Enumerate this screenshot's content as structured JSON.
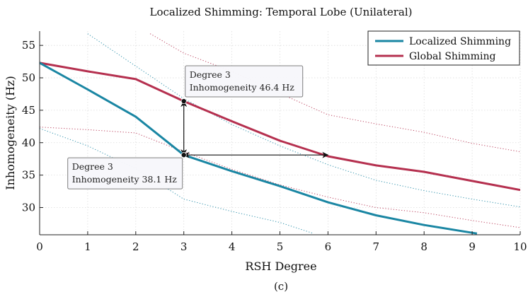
{
  "chart_data": {
    "type": "line",
    "title": "Localized Shimming: Temporal Lobe (Unilateral)",
    "xlabel": "RSH Degree",
    "ylabel": "Inhomogeneity (Hz)",
    "caption": "(c)",
    "xlim": [
      0,
      10
    ],
    "ylim": [
      25.8,
      57.2
    ],
    "xticks": [
      0,
      1,
      2,
      3,
      4,
      5,
      6,
      7,
      8,
      9,
      10
    ],
    "yticks": [
      30,
      35,
      40,
      45,
      50,
      55
    ],
    "grid": true,
    "legend_position": "top-right",
    "series": [
      {
        "name": "Localized Shimming",
        "color": "#1a86a3",
        "x": [
          0,
          1,
          2,
          3,
          4,
          5,
          6,
          7,
          8,
          9,
          9.1
        ],
        "y": [
          52.3,
          48.2,
          44.0,
          38.1,
          35.6,
          33.3,
          30.8,
          28.8,
          27.3,
          26.1,
          26.0
        ],
        "band_upper": {
          "x": [
            1,
            2,
            3,
            4,
            5,
            6,
            7,
            8,
            9,
            10
          ],
          "y": [
            56.8,
            51.8,
            46.8,
            42.8,
            39.5,
            36.6,
            34.2,
            32.6,
            31.3,
            30.1
          ]
        },
        "band_lower": {
          "x": [
            0,
            1,
            2,
            3,
            4,
            5,
            5.7
          ],
          "y": [
            42.2,
            39.5,
            36.0,
            31.3,
            29.4,
            27.7,
            26.0
          ]
        }
      },
      {
        "name": "Global Shimming",
        "color": "#b5304f",
        "x": [
          0,
          1,
          2,
          3,
          4,
          5,
          6,
          7,
          8,
          9,
          10
        ],
        "y": [
          52.3,
          51.0,
          49.8,
          46.4,
          43.3,
          40.3,
          37.9,
          36.5,
          35.5,
          34.1,
          32.7
        ],
        "band_upper": {
          "x": [
            2.3,
            3,
            4,
            5,
            6,
            7,
            8,
            9,
            10
          ],
          "y": [
            56.8,
            53.8,
            51.0,
            47.6,
            44.3,
            42.9,
            41.6,
            39.9,
            38.6
          ]
        },
        "band_lower": {
          "x": [
            0,
            1,
            2,
            3,
            4,
            5,
            6,
            7,
            8,
            9,
            10
          ],
          "y": [
            42.4,
            42.0,
            41.5,
            38.6,
            35.9,
            33.5,
            31.6,
            30.0,
            29.2,
            28.0,
            26.9
          ]
        }
      }
    ],
    "annotations": [
      {
        "lines": [
          "Degree 3",
          "Inhomogeneity 46.4 Hz"
        ],
        "x": 3,
        "y": 46.4,
        "color": "#b5304f"
      },
      {
        "lines": [
          "Degree 3",
          "Inhomogeneity 38.1 Hz"
        ],
        "x": 3,
        "y": 38.1,
        "color": "#1a86a3"
      }
    ],
    "arrows": [
      {
        "from": [
          3,
          38.1
        ],
        "to": [
          3,
          46.4
        ]
      },
      {
        "from": [
          3,
          38.1
        ],
        "to": [
          6,
          38.1
        ]
      }
    ]
  }
}
